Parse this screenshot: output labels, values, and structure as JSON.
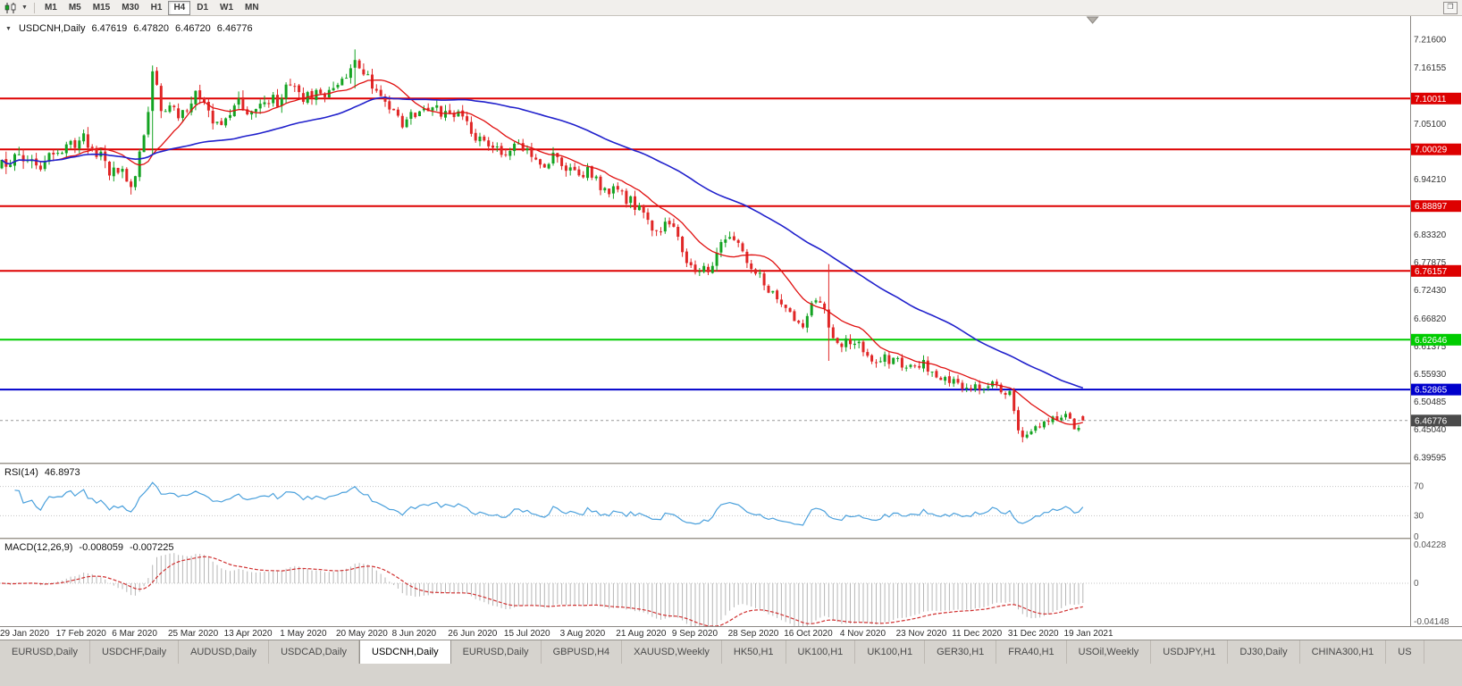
{
  "toolbar": {
    "timeframes": [
      "M1",
      "M5",
      "M15",
      "M30",
      "H1",
      "H4",
      "D1",
      "W1",
      "MN"
    ],
    "active_timeframe": "H4"
  },
  "chart": {
    "title": "USDCNH,Daily",
    "ohlc": {
      "open": "6.47619",
      "high": "6.47820",
      "low": "6.46720",
      "close": "6.46776"
    }
  },
  "rsi_panel": {
    "label": "RSI(14)",
    "value": "46.8973"
  },
  "macd_panel": {
    "label": "MACD(12,26,9)",
    "value1": "-0.008059",
    "value2": "-0.007225"
  },
  "tabs": {
    "items": [
      "EURUSD,Daily",
      "USDCHF,Daily",
      "AUDUSD,Daily",
      "USDCAD,Daily",
      "USDCNH,Daily",
      "EURUSD,Daily",
      "GBPUSD,H4",
      "XAUUSD,Weekly",
      "HK50,H1",
      "UK100,H1",
      "UK100,H1",
      "GER30,H1",
      "FRA40,H1",
      "USOil,Weekly",
      "USDJPY,H1",
      "DJ30,Daily",
      "CHINA300,H1",
      "US"
    ],
    "active_index": 4
  },
  "chart_data": {
    "type": "candlestick",
    "symbol": "USDCNH",
    "timeframe": "Daily",
    "bars": 252,
    "bar_spacing": 4.82,
    "ylim": [
      6.385,
      7.262
    ],
    "last_bar": [
      6.47619,
      6.4782,
      6.4672,
      6.46776
    ],
    "volatility": 0.016,
    "colors": {
      "up": "#14a322",
      "down": "#e02626",
      "background": "#ffffff",
      "axis_text": "#333333"
    },
    "price_anchors": [
      [
        0,
        6.965
      ],
      [
        4,
        6.993
      ],
      [
        8,
        6.972
      ],
      [
        13,
        6.988
      ],
      [
        16,
        7.005
      ],
      [
        19,
        7.028
      ],
      [
        22,
        6.998
      ],
      [
        25,
        6.952
      ],
      [
        27,
        6.968
      ],
      [
        30,
        6.932
      ],
      [
        33,
        7.02
      ],
      [
        35,
        7.155
      ],
      [
        37,
        7.075
      ],
      [
        39,
        7.09
      ],
      [
        42,
        7.065
      ],
      [
        45,
        7.105
      ],
      [
        48,
        7.085
      ],
      [
        50,
        7.045
      ],
      [
        52,
        7.06
      ],
      [
        55,
        7.09
      ],
      [
        58,
        7.07
      ],
      [
        61,
        7.08
      ],
      [
        63,
        7.095
      ],
      [
        65,
        7.1
      ],
      [
        67,
        7.128
      ],
      [
        70,
        7.095
      ],
      [
        73,
        7.11
      ],
      [
        76,
        7.105
      ],
      [
        78,
        7.122
      ],
      [
        80,
        7.14
      ],
      [
        82,
        7.175
      ],
      [
        84,
        7.15
      ],
      [
        86,
        7.13
      ],
      [
        88,
        7.1
      ],
      [
        91,
        7.068
      ],
      [
        93,
        7.055
      ],
      [
        96,
        7.075
      ],
      [
        99,
        7.088
      ],
      [
        102,
        7.068
      ],
      [
        104,
        7.076
      ],
      [
        107,
        7.062
      ],
      [
        110,
        7.03
      ],
      [
        113,
        7.015
      ],
      [
        115,
        7.002
      ],
      [
        117,
        6.992
      ],
      [
        120,
        7.005
      ],
      [
        123,
        6.985
      ],
      [
        126,
        6.972
      ],
      [
        128,
        6.982
      ],
      [
        130,
        6.975
      ],
      [
        133,
        6.952
      ],
      [
        136,
        6.958
      ],
      [
        139,
        6.93
      ],
      [
        143,
        6.915
      ],
      [
        146,
        6.9
      ],
      [
        149,
        6.87
      ],
      [
        152,
        6.84
      ],
      [
        154,
        6.852
      ],
      [
        156,
        6.842
      ],
      [
        158,
        6.8
      ],
      [
        160,
        6.772
      ],
      [
        162,
        6.768
      ],
      [
        164,
        6.755
      ],
      [
        166,
        6.792
      ],
      [
        168,
        6.825
      ],
      [
        170,
        6.822
      ],
      [
        172,
        6.79
      ],
      [
        174,
        6.772
      ],
      [
        176,
        6.752
      ],
      [
        178,
        6.725
      ],
      [
        180,
        6.708
      ],
      [
        182,
        6.698
      ],
      [
        184,
        6.672
      ],
      [
        186,
        6.655
      ],
      [
        188,
        6.688
      ],
      [
        190,
        6.7
      ],
      [
        192,
        6.66
      ],
      [
        193,
        6.63
      ],
      [
        195,
        6.622
      ],
      [
        197,
        6.618
      ],
      [
        199,
        6.615
      ],
      [
        201,
        6.6
      ],
      [
        203,
        6.582
      ],
      [
        205,
        6.592
      ],
      [
        208,
        6.582
      ],
      [
        210,
        6.572
      ],
      [
        212,
        6.585
      ],
      [
        214,
        6.578
      ],
      [
        216,
        6.565
      ],
      [
        218,
        6.552
      ],
      [
        220,
        6.545
      ],
      [
        222,
        6.542
      ],
      [
        224,
        6.532
      ],
      [
        226,
        6.538
      ],
      [
        228,
        6.528
      ],
      [
        230,
        6.535
      ],
      [
        232,
        6.528
      ],
      [
        234,
        6.518
      ],
      [
        236,
        6.452
      ],
      [
        237,
        6.435
      ],
      [
        239,
        6.448
      ],
      [
        241,
        6.462
      ],
      [
        243,
        6.475
      ],
      [
        245,
        6.47
      ],
      [
        247,
        6.478
      ],
      [
        249,
        6.455
      ],
      [
        251,
        6.468
      ]
    ],
    "wick_overrides": [
      [
        35,
        7.165,
        6.99
      ],
      [
        82,
        7.1965,
        7.12
      ],
      [
        192,
        6.775,
        6.585
      ],
      [
        237,
        6.455,
        6.425
      ]
    ],
    "levels": [
      {
        "price": 7.10011,
        "label": "7.10011",
        "color": "#dd0000"
      },
      {
        "price": 7.00029,
        "label": "7.00029",
        "color": "#dd0000"
      },
      {
        "price": 6.88897,
        "label": "6.88897",
        "color": "#dd0000"
      },
      {
        "price": 6.76157,
        "label": "6.76157",
        "color": "#dd0000"
      },
      {
        "price": 6.62646,
        "label": "6.62646",
        "color": "#00cc00"
      },
      {
        "price": 6.52865,
        "label": "6.52865",
        "color": "#0000cc"
      }
    ],
    "current_price": {
      "value": 6.46776,
      "label": "6.46776",
      "badge_color": "#4a4a4a"
    },
    "price_ticks": [
      [
        7.216,
        "7.21600"
      ],
      [
        7.16155,
        "7.16155"
      ],
      [
        7.051,
        "7.05100"
      ],
      [
        6.9421,
        "6.94210"
      ],
      [
        6.8332,
        "6.83320"
      ],
      [
        6.77875,
        "6.77875"
      ],
      [
        6.7243,
        "6.72430"
      ],
      [
        6.6682,
        "6.66820"
      ],
      [
        6.61375,
        "6.61375"
      ],
      [
        6.5593,
        "6.55930"
      ],
      [
        6.50485,
        "6.50485"
      ],
      [
        6.4504,
        "6.45040"
      ],
      [
        6.39595,
        "6.39595"
      ]
    ],
    "moving_averages": [
      {
        "period": 13,
        "color": "#e01010",
        "name": "fast-ma"
      },
      {
        "period": 55,
        "color": "#2020cc",
        "name": "slow-ma"
      }
    ],
    "rsi": {
      "period": 14,
      "color": "#4aa0dc",
      "levels": [
        70,
        30
      ],
      "range": [
        0,
        100
      ],
      "axis_labels": [
        [
          "70",
          70
        ],
        [
          "30",
          30
        ],
        [
          "0",
          0
        ]
      ],
      "last": 46.8973
    },
    "macd": {
      "fast": 12,
      "slow": 26,
      "signal": 9,
      "range": [
        -0.0415,
        0.0423
      ],
      "histogram_color": "#b6b6b6",
      "signal_color": "#d03030",
      "axis_labels": [
        [
          "0.04228",
          0.0423
        ],
        [
          "0",
          0
        ],
        [
          "-0.04148",
          -0.0415
        ]
      ],
      "last": [
        -0.008059,
        -0.007225
      ]
    },
    "dates": [
      [
        0,
        "29 Jan 2020"
      ],
      [
        13,
        "17 Feb 2020"
      ],
      [
        26,
        "6 Mar 2020"
      ],
      [
        39,
        "25 Mar 2020"
      ],
      [
        52,
        "13 Apr 2020"
      ],
      [
        65,
        "1 May 2020"
      ],
      [
        78,
        "20 May 2020"
      ],
      [
        91,
        "8 Jun 2020"
      ],
      [
        104,
        "26 Jun 2020"
      ],
      [
        117,
        "15 Jul 2020"
      ],
      [
        130,
        "3 Aug 2020"
      ],
      [
        143,
        "21 Aug 2020"
      ],
      [
        156,
        "9 Sep 2020"
      ],
      [
        169,
        "28 Sep 2020"
      ],
      [
        182,
        "16 Oct 2020"
      ],
      [
        195,
        "4 Nov 2020"
      ],
      [
        208,
        "23 Nov 2020"
      ],
      [
        221,
        "11 Dec 2020"
      ],
      [
        234,
        "31 Dec 2020"
      ],
      [
        247,
        "19 Jan 2021"
      ]
    ]
  }
}
